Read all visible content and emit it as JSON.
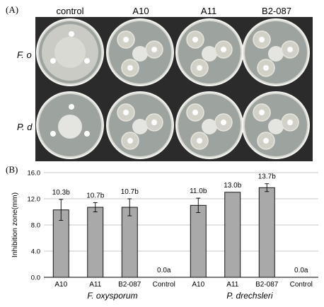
{
  "panel_a": {
    "label": "(A)",
    "columns": [
      "control",
      "A10",
      "A11",
      "B2-087"
    ],
    "rows": [
      "F. o",
      "P. d"
    ],
    "plates": [
      {
        "row": 0,
        "col": 0,
        "pathogen_growth": "full",
        "discs": 3
      },
      {
        "row": 0,
        "col": 1,
        "pathogen_growth": "colony",
        "discs": 3
      },
      {
        "row": 0,
        "col": 2,
        "pathogen_growth": "colony",
        "discs": 3
      },
      {
        "row": 0,
        "col": 3,
        "pathogen_growth": "colony",
        "discs": 3
      },
      {
        "row": 1,
        "col": 0,
        "pathogen_growth": "colony",
        "discs": 3
      },
      {
        "row": 1,
        "col": 1,
        "pathogen_growth": "colony",
        "discs": 3
      },
      {
        "row": 1,
        "col": 2,
        "pathogen_growth": "colony",
        "discs": 3
      },
      {
        "row": 1,
        "col": 3,
        "pathogen_growth": "colony",
        "discs": 3
      }
    ]
  },
  "chart_data": {
    "panel_label": "(B)",
    "type": "bar",
    "ylabel": "Inhibition zone(mm)",
    "ylim": [
      0,
      16
    ],
    "yticks": [
      "0.0",
      "4.0",
      "8.0",
      "12.0",
      "16.0"
    ],
    "ytick_values": [
      0,
      4,
      8,
      12,
      16
    ],
    "grid": true,
    "bar_color": "#a9a9a9",
    "categories": [
      "A10",
      "A11",
      "B2-087",
      "Control",
      "A10",
      "A11",
      "B2-087",
      "Control"
    ],
    "values": [
      10.3,
      10.7,
      10.7,
      0.0,
      11.0,
      13.0,
      13.7,
      0.0
    ],
    "errors": [
      1.6,
      0.7,
      1.3,
      0,
      1.1,
      0,
      0.6,
      0
    ],
    "data_labels": [
      "10.3b",
      "10.7b",
      "10.7b",
      "0.0a",
      "11.0b",
      "13.0b",
      "13.7b",
      "0.0a"
    ],
    "groups": [
      {
        "name": "F. oxysporum",
        "members": [
          0,
          1,
          2,
          3
        ]
      },
      {
        "name": "P. drechsleri",
        "members": [
          4,
          5,
          6,
          7
        ]
      }
    ]
  }
}
